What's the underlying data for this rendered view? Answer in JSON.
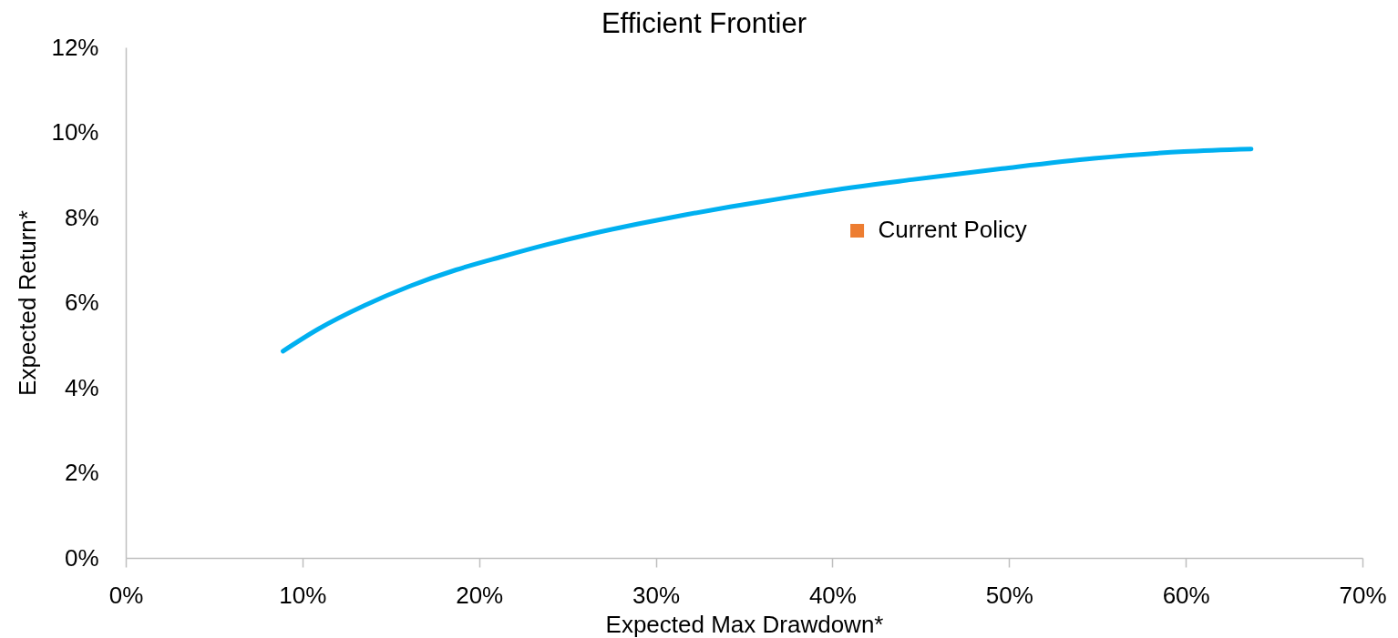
{
  "chart_data": {
    "type": "line",
    "title": "Efficient Frontier",
    "xlabel": "Expected Max Drawdown*",
    "ylabel": "Expected Return*",
    "xlim": [
      0,
      70
    ],
    "ylim": [
      0,
      12
    ],
    "xticks": [
      {
        "value": 0,
        "label": "0%"
      },
      {
        "value": 10,
        "label": "10%"
      },
      {
        "value": 20,
        "label": "20%"
      },
      {
        "value": 30,
        "label": "30%"
      },
      {
        "value": 40,
        "label": "40%"
      },
      {
        "value": 50,
        "label": "50%"
      },
      {
        "value": 60,
        "label": "60%"
      },
      {
        "value": 70,
        "label": "70%"
      }
    ],
    "yticks": [
      {
        "value": 0,
        "label": "0%"
      },
      {
        "value": 2,
        "label": "2%"
      },
      {
        "value": 4,
        "label": "4%"
      },
      {
        "value": 6,
        "label": "6%"
      },
      {
        "value": 8,
        "label": "8%"
      },
      {
        "value": 10,
        "label": "10%"
      },
      {
        "value": 12,
        "label": "12%"
      }
    ],
    "grid": false,
    "legend": false,
    "series": [
      {
        "color": "#00b0f0",
        "line_style": "solid",
        "x": [
          8.9,
          10.9,
          13.5,
          16.1,
          18.7,
          21.3,
          23.8,
          26.4,
          29.0,
          31.6,
          34.2,
          36.7,
          39.2,
          44.5,
          49.6,
          54.8,
          59.9,
          63.7
        ],
        "values": [
          4.86,
          5.38,
          5.93,
          6.39,
          6.77,
          7.08,
          7.36,
          7.62,
          7.85,
          8.06,
          8.25,
          8.42,
          8.59,
          8.89,
          9.15,
          9.39,
          9.55,
          9.61
        ]
      },
      {
        "type": "scatter",
        "name": "Current Policy",
        "color": "#ed7d31",
        "marker": "square",
        "x": [
          41.4
        ],
        "values": [
          7.69
        ]
      }
    ]
  }
}
